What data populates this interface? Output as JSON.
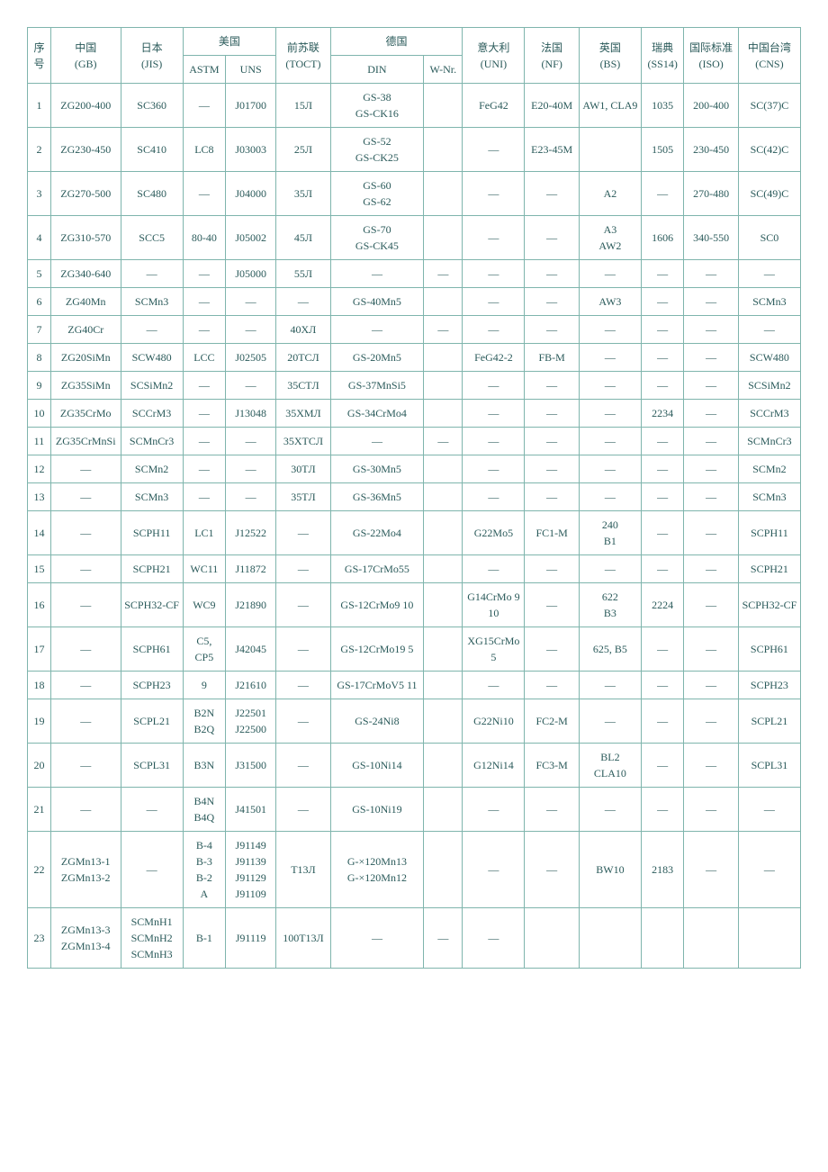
{
  "colors": {
    "border": "#7fb5ad",
    "text": "#2a5a5a",
    "background": "#ffffff"
  },
  "typography": {
    "font_family": "SimSun",
    "font_size_pt": 9
  },
  "headers": {
    "row1": {
      "idx": "序号",
      "gb": "中国\n(GB)",
      "jis": "日本\n(JIS)",
      "usa": "美国",
      "toct": "前苏联\n(TOCT)",
      "ger": "德国",
      "uni": "意大利\n(UNI)",
      "nf": "法国\n(NF)",
      "bs": "英国\n(BS)",
      "ss14": "瑞典\n(SS14)",
      "iso": "国际标准\n(ISO)",
      "cns": "中国台湾\n(CNS)"
    },
    "row2": {
      "astm": "ASTM",
      "uns": "UNS",
      "din": "DIN",
      "wnr": "W-Nr."
    }
  },
  "rows": [
    {
      "idx": "1",
      "gb": "ZG200-400",
      "jis": "SC360",
      "astm": "—",
      "uns": "J01700",
      "toct": "15Л",
      "din": "GS-38\nGS-CK16",
      "wnr": "",
      "uni": "FeG42",
      "nf": "E20-40M",
      "bs": "AW1, CLA9",
      "ss14": "1035",
      "iso": "200-400",
      "cns": "SC(37)C"
    },
    {
      "idx": "2",
      "gb": "ZG230-450",
      "jis": "SC410",
      "astm": "LC8",
      "uns": "J03003",
      "toct": "25Л",
      "din": "GS-52\nGS-CK25",
      "wnr": "",
      "uni": "—",
      "nf": "E23-45M",
      "bs": "",
      "ss14": "1505",
      "iso": "230-450",
      "cns": "SC(42)C"
    },
    {
      "idx": "3",
      "gb": "ZG270-500",
      "jis": "SC480",
      "astm": "—",
      "uns": "J04000",
      "toct": "35Л",
      "din": "GS-60\nGS-62",
      "wnr": "",
      "uni": "—",
      "nf": "—",
      "bs": "A2",
      "ss14": "—",
      "iso": "270-480",
      "cns": "SC(49)C"
    },
    {
      "idx": "4",
      "gb": "ZG310-570",
      "jis": "SCC5",
      "astm": "80-40",
      "uns": "J05002",
      "toct": "45Л",
      "din": "GS-70\nGS-CK45",
      "wnr": "",
      "uni": "—",
      "nf": "—",
      "bs": "A3\nAW2",
      "ss14": "1606",
      "iso": "340-550",
      "cns": "SC0"
    },
    {
      "idx": "5",
      "gb": "ZG340-640",
      "jis": "—",
      "astm": "—",
      "uns": "J05000",
      "toct": "55Л",
      "din": "—",
      "wnr": "—",
      "uni": "—",
      "nf": "—",
      "bs": "—",
      "ss14": "—",
      "iso": "—",
      "cns": "—"
    },
    {
      "idx": "6",
      "gb": "ZG40Mn",
      "jis": "SCMn3",
      "astm": "—",
      "uns": "—",
      "toct": "—",
      "din": "GS-40Mn5",
      "wnr": "",
      "uni": "—",
      "nf": "—",
      "bs": "AW3",
      "ss14": "—",
      "iso": "—",
      "cns": "SCMn3"
    },
    {
      "idx": "7",
      "gb": "ZG40Cr",
      "jis": "—",
      "astm": "—",
      "uns": "—",
      "toct": "40XЛ",
      "din": "—",
      "wnr": "—",
      "uni": "—",
      "nf": "—",
      "bs": "—",
      "ss14": "—",
      "iso": "—",
      "cns": "—"
    },
    {
      "idx": "8",
      "gb": "ZG20SiMn",
      "jis": "SCW480",
      "astm": "LCC",
      "uns": "J02505",
      "toct": "20TCЛ",
      "din": "GS-20Mn5",
      "wnr": "",
      "uni": "FeG42-2",
      "nf": "FB-M",
      "bs": "—",
      "ss14": "—",
      "iso": "—",
      "cns": "SCW480"
    },
    {
      "idx": "9",
      "gb": "ZG35SiMn",
      "jis": "SCSiMn2",
      "astm": "—",
      "uns": "—",
      "toct": "35CTЛ",
      "din": "GS-37MnSi5",
      "wnr": "",
      "uni": "—",
      "nf": "—",
      "bs": "—",
      "ss14": "—",
      "iso": "—",
      "cns": "SCSiMn2"
    },
    {
      "idx": "10",
      "gb": "ZG35CrMo",
      "jis": "SCCrM3",
      "astm": "—",
      "uns": "J13048",
      "toct": "35XMЛ",
      "din": "GS-34CrMo4",
      "wnr": "",
      "uni": "—",
      "nf": "—",
      "bs": "—",
      "ss14": "2234",
      "iso": "—",
      "cns": "SCCrM3"
    },
    {
      "idx": "11",
      "gb": "ZG35CrMnSi",
      "jis": "SCMnCr3",
      "astm": "—",
      "uns": "—",
      "toct": "35XTCЛ",
      "din": "—",
      "wnr": "—",
      "uni": "—",
      "nf": "—",
      "bs": "—",
      "ss14": "—",
      "iso": "—",
      "cns": "SCMnCr3"
    },
    {
      "idx": "12",
      "gb": "—",
      "jis": "SCMn2",
      "astm": "—",
      "uns": "—",
      "toct": "30TЛ",
      "din": "GS-30Mn5",
      "wnr": "",
      "uni": "—",
      "nf": "—",
      "bs": "—",
      "ss14": "—",
      "iso": "—",
      "cns": "SCMn2"
    },
    {
      "idx": "13",
      "gb": "—",
      "jis": "SCMn3",
      "astm": "—",
      "uns": "—",
      "toct": "35TЛ",
      "din": "GS-36Mn5",
      "wnr": "",
      "uni": "—",
      "nf": "—",
      "bs": "—",
      "ss14": "—",
      "iso": "—",
      "cns": "SCMn3"
    },
    {
      "idx": "14",
      "gb": "—",
      "jis": "SCPH11",
      "astm": "LC1",
      "uns": "J12522",
      "toct": "—",
      "din": "GS-22Mo4",
      "wnr": "",
      "uni": "G22Mo5",
      "nf": "FC1-M",
      "bs": "240\nB1",
      "ss14": "—",
      "iso": "—",
      "cns": "SCPH11"
    },
    {
      "idx": "15",
      "gb": "—",
      "jis": "SCPH21",
      "astm": "WC11",
      "uns": "J11872",
      "toct": "—",
      "din": "GS-17CrMo55",
      "wnr": "",
      "uni": "—",
      "nf": "—",
      "bs": "—",
      "ss14": "—",
      "iso": "—",
      "cns": "SCPH21"
    },
    {
      "idx": "16",
      "gb": "—",
      "jis": "SCPH32-CF",
      "astm": "WC9",
      "uns": "J21890",
      "toct": "—",
      "din": "GS-12CrMo9 10",
      "wnr": "",
      "uni": "G14CrMo 9 10",
      "nf": "—",
      "bs": "622\nB3",
      "ss14": "2224",
      "iso": "—",
      "cns": "SCPH32-CF"
    },
    {
      "idx": "17",
      "gb": "—",
      "jis": "SCPH61",
      "astm": "C5,\nCP5",
      "uns": "J42045",
      "toct": "—",
      "din": "GS-12CrMo19 5",
      "wnr": "",
      "uni": "XG15CrMo 5",
      "nf": "—",
      "bs": "625,   B5",
      "ss14": "—",
      "iso": "—",
      "cns": "SCPH61"
    },
    {
      "idx": "18",
      "gb": "—",
      "jis": "SCPH23",
      "astm": "9",
      "uns": "J21610",
      "toct": "—",
      "din": "GS-17CrMoV5 11",
      "wnr": "",
      "uni": "—",
      "nf": "—",
      "bs": "—",
      "ss14": "—",
      "iso": "—",
      "cns": "SCPH23"
    },
    {
      "idx": "19",
      "gb": "—",
      "jis": "SCPL21",
      "astm": "B2N\nB2Q",
      "uns": "J22501\nJ22500",
      "toct": "—",
      "din": "GS-24Ni8",
      "wnr": "",
      "uni": "G22Ni10",
      "nf": "FC2-M",
      "bs": "—",
      "ss14": "—",
      "iso": "—",
      "cns": "SCPL21"
    },
    {
      "idx": "20",
      "gb": "—",
      "jis": "SCPL31",
      "astm": "B3N",
      "uns": "J31500",
      "toct": "—",
      "din": "GS-10Ni14",
      "wnr": "",
      "uni": "G12Ni14",
      "nf": "FC3-M",
      "bs": "BL2\nCLA10",
      "ss14": "—",
      "iso": "—",
      "cns": "SCPL31"
    },
    {
      "idx": "21",
      "gb": "—",
      "jis": "—",
      "astm": "B4N\nB4Q",
      "uns": "J41501",
      "toct": "—",
      "din": "GS-10Ni19",
      "wnr": "",
      "uni": "—",
      "nf": "—",
      "bs": "—",
      "ss14": "—",
      "iso": "—",
      "cns": "—"
    },
    {
      "idx": "22",
      "gb": "ZGMn13-1\nZGMn13-2",
      "jis": "—",
      "astm": "B-4\nB-3\nB-2\nA",
      "uns": "J91149\nJ91139\nJ91129\nJ91109",
      "toct": "T13Л",
      "din": "G-×120Mn13\nG-×120Mn12",
      "wnr": "",
      "uni": "—",
      "nf": "—",
      "bs": "BW10",
      "ss14": "2183",
      "iso": "—",
      "cns": "—"
    },
    {
      "idx": "23",
      "gb": "ZGMn13-3\nZGMn13-4",
      "jis": "SCMnH1\nSCMnH2\nSCMnH3",
      "astm": "B-1",
      "uns": "J91119",
      "toct": "100T13Л",
      "din": "—",
      "wnr": "—",
      "uni": "—",
      "nf": "",
      "bs": "",
      "ss14": "",
      "iso": "",
      "cns": ""
    }
  ]
}
